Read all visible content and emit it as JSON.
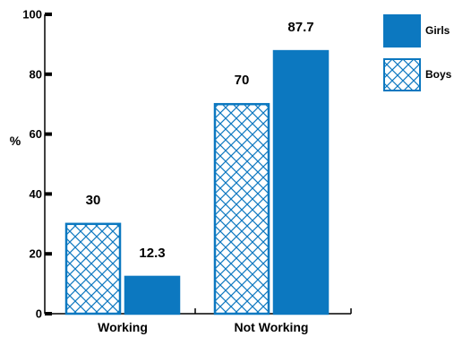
{
  "chart_data": {
    "type": "bar",
    "categories": [
      "Working",
      "Not Working"
    ],
    "series": [
      {
        "name": "Boys",
        "values": [
          30,
          70
        ],
        "pattern": "crosshatch"
      },
      {
        "name": "Girls",
        "values": [
          12.3,
          87.7
        ],
        "pattern": "solid"
      }
    ],
    "data_labels": [
      "30",
      "12.3",
      "70",
      "87.7"
    ],
    "title": "",
    "xlabel": "",
    "ylabel": "%",
    "ylim": [
      0,
      100
    ],
    "yticks": [
      0,
      20,
      40,
      60,
      80,
      100
    ],
    "grid": false,
    "legend": {
      "placement": "top-right",
      "order": [
        "Girls",
        "Boys"
      ]
    }
  },
  "colors": {
    "bar": "#0c78c0",
    "hatch": "#0c78c0",
    "axis": "#000000",
    "text": "#000000",
    "background": "#ffffff"
  }
}
